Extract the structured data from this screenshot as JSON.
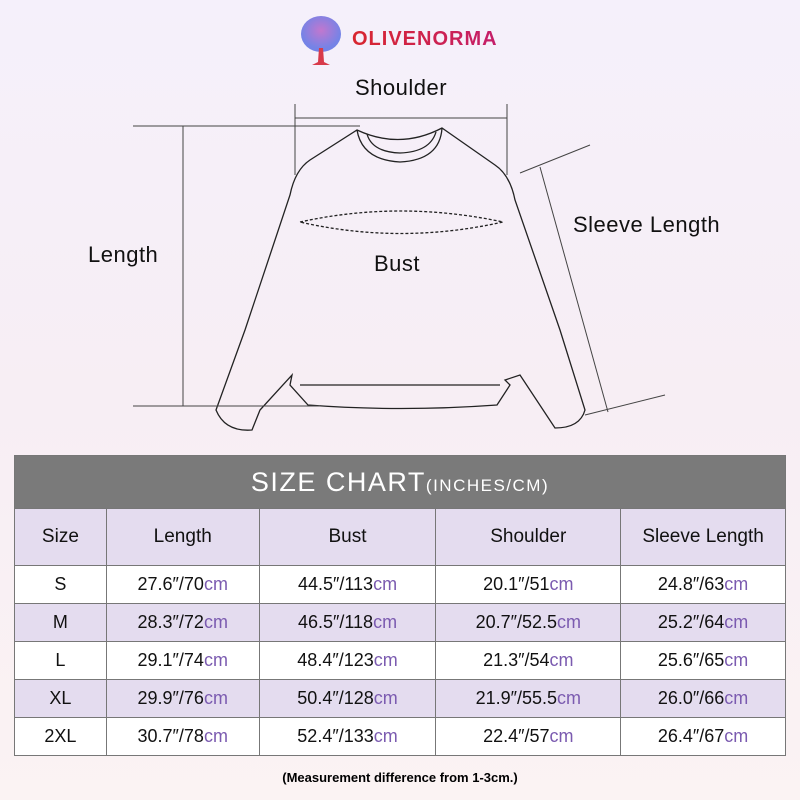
{
  "brand": "OLIVENORMA",
  "diagram": {
    "shoulder": "Shoulder",
    "length": "Length",
    "bust": "Bust",
    "sleeve": "Sleeve Length"
  },
  "table": {
    "title": "SIZE CHART",
    "title_unit": "(INCHES/CM)",
    "headers": [
      "Size",
      "Length",
      "Bust",
      "Shoulder",
      "Sleeve Length"
    ],
    "rows": [
      [
        "S",
        "27.6″/70",
        "44.5″/113",
        "20.1″/51",
        "24.8″/63"
      ],
      [
        "M",
        "28.3″/72",
        "46.5″/118",
        "20.7″/52.5",
        "25.2″/64"
      ],
      [
        "L",
        "29.1″/74",
        "48.4″/123",
        "21.3″/54",
        "25.6″/65"
      ],
      [
        "XL",
        "29.9″/76",
        "50.4″/128",
        "21.9″/55.5",
        "26.0″/66"
      ],
      [
        "2XL",
        "30.7″/78",
        "52.4″/133",
        "22.4″/57",
        "26.4″/67"
      ]
    ],
    "unit": "cm"
  },
  "note": "(Measurement difference from 1-3cm.)",
  "colors": {
    "header": "#7a7a7a",
    "lavender": "#e4dcef",
    "cm": "#7b5bb0",
    "brand": "#d8262e"
  }
}
